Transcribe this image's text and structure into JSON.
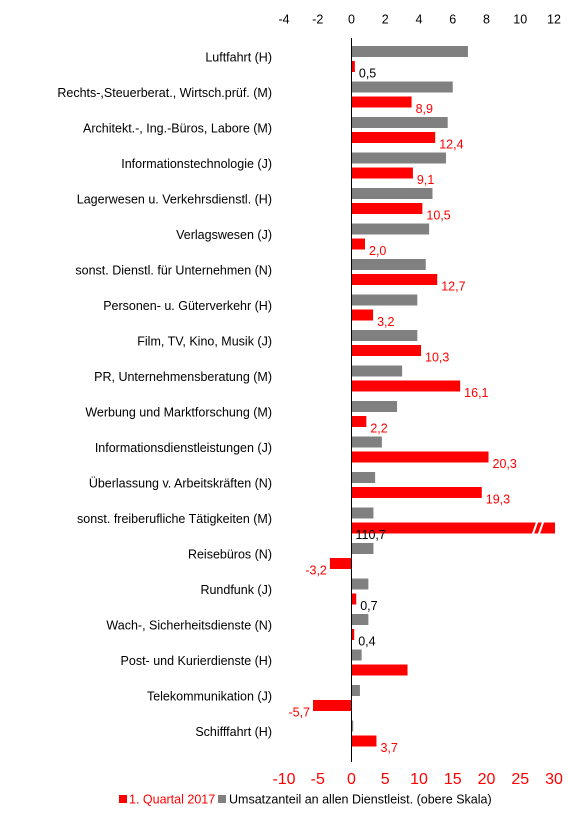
{
  "chart_data": {
    "type": "bar",
    "orientation": "horizontal",
    "categories": [
      "Luftfahrt (H)",
      "Rechts-,Steuerberat., Wirtsch.prüf. (M)",
      "Architekt.-, Ing.-Büros, Labore (M)",
      "Informationstechnologie (J)",
      "Lagerwesen u. Verkehrsdienstl. (H)",
      "Verlagswesen (J)",
      "sonst. Dienstl. für Unternehmen (N)",
      "Personen- u. Güterverkehr (H)",
      "Film, TV, Kino, Musik (J)",
      "PR, Unternehmensberatung (M)",
      "Werbung und Marktforschung (M)",
      "Informationsdienstleistungen (J)",
      "Überlassung v. Arbeitskräften (N)",
      "sonst. freiberufliche Tätigkeiten (M)",
      "Reisebüros (N)",
      "Rundfunk (J)",
      "Wach-, Sicherheitsdienste (N)",
      "Post- und Kurierdienste (H)",
      "Telekommunikation (J)",
      "Schifffahrt (H)"
    ],
    "series": [
      {
        "name": "1. Quartal 2017",
        "color": "#ff0000",
        "axis": "x",
        "values": [
          0.5,
          8.9,
          12.4,
          9.1,
          10.5,
          2.0,
          12.7,
          3.2,
          10.3,
          16.1,
          2.2,
          20.3,
          19.3,
          110.7,
          -3.2,
          0.7,
          0.4,
          8.3,
          -5.7,
          3.7
        ],
        "value_labels": [
          "0,5",
          "8,9",
          "12,4",
          "9,1",
          "10,5",
          "2,0",
          "12,7",
          "3,2",
          "10,3",
          "16,1",
          "2,2",
          "20,3",
          "19,3",
          "110,7",
          "-3,2",
          "0,7",
          "0,4",
          null,
          "-5,7",
          "3,7"
        ]
      },
      {
        "name": "Umsatzanteil an allen Dienstleist. (obere Skala)",
        "color": "#808080",
        "axis": "x2",
        "values": [
          6.9,
          6.0,
          5.7,
          5.6,
          4.8,
          4.6,
          4.4,
          3.9,
          3.9,
          3.0,
          2.7,
          1.8,
          1.4,
          1.3,
          1.3,
          1.0,
          1.0,
          0.6,
          0.5,
          0.1
        ]
      }
    ],
    "xlim": [
      -10,
      30
    ],
    "xticks": [
      -10,
      -5,
      0,
      5,
      10,
      15,
      20,
      25,
      30
    ],
    "x2lim": [
      -4,
      12
    ],
    "x2ticks": [
      -4,
      -2,
      0,
      2,
      4,
      6,
      8,
      10,
      12
    ],
    "grid": false
  }
}
